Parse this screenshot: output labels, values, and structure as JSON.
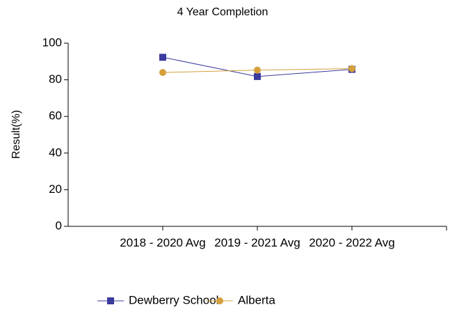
{
  "chart_data": {
    "type": "line",
    "title": "4 Year Completion",
    "y_label": "Result(%)",
    "categories": [
      "2018 - 2020 Avg",
      "2019 - 2021 Avg",
      "2020 - 2022 Avg"
    ],
    "series": [
      {
        "name": "Dewberry School",
        "color": "#3a3a9e",
        "marker": "square",
        "values": [
          92.3,
          81.8,
          85.7
        ]
      },
      {
        "name": "Alberta",
        "color": "#d4a03a",
        "marker": "circle",
        "values": [
          84.0,
          85.3,
          86.1
        ]
      }
    ],
    "ylim": [
      0,
      100
    ],
    "yticks": [
      0,
      20,
      40,
      60,
      80,
      100
    ],
    "grid": false,
    "legend": "bottom"
  }
}
